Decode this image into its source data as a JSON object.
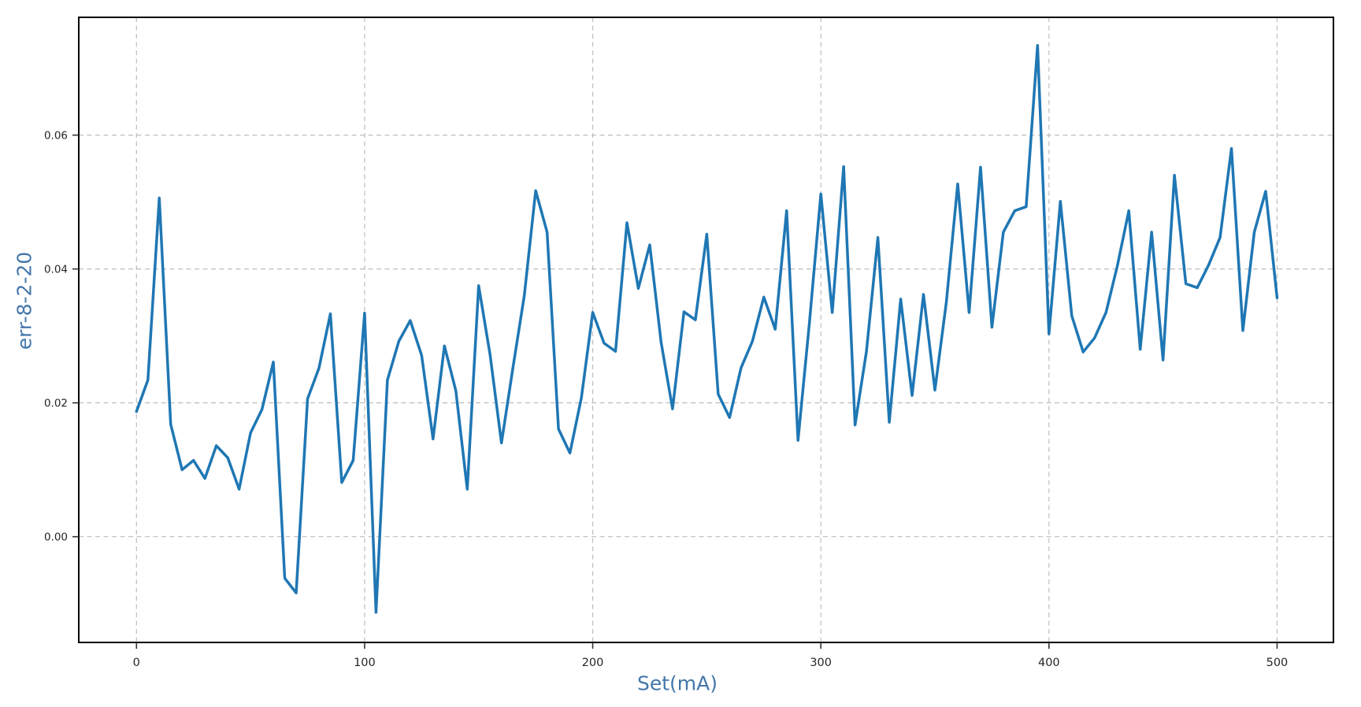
{
  "chart_data": {
    "type": "line",
    "title": "",
    "xlabel": "Set(mA)",
    "ylabel": "err-8-2-20",
    "series_name": "err-8-2-20",
    "x": [
      0,
      5,
      10,
      15,
      20,
      25,
      30,
      35,
      40,
      45,
      50,
      55,
      60,
      65,
      70,
      75,
      80,
      85,
      90,
      95,
      100,
      105,
      110,
      115,
      120,
      125,
      130,
      135,
      140,
      145,
      150,
      155,
      160,
      165,
      170,
      175,
      180,
      185,
      190,
      195,
      200,
      205,
      210,
      215,
      220,
      225,
      230,
      235,
      240,
      245,
      250,
      255,
      260,
      265,
      270,
      275,
      280,
      285,
      290,
      295,
      300,
      305,
      310,
      315,
      320,
      325,
      330,
      335,
      340,
      345,
      350,
      355,
      360,
      365,
      370,
      375,
      380,
      385,
      390,
      395,
      400,
      405,
      410,
      415,
      420,
      425,
      430,
      435,
      440,
      445,
      450,
      455,
      460,
      465,
      470,
      475,
      480,
      485,
      490,
      495,
      500
    ],
    "y": [
      0.0187,
      0.0234,
      0.0506,
      0.0168,
      0.01,
      0.0114,
      0.0087,
      0.0136,
      0.0118,
      0.0071,
      0.0155,
      0.019,
      0.0261,
      -0.0062,
      -0.0084,
      0.0206,
      0.0252,
      0.0333,
      0.0081,
      0.0114,
      0.0334,
      -0.0113,
      0.0234,
      0.0292,
      0.0323,
      0.0271,
      0.0146,
      0.0285,
      0.0218,
      0.0071,
      0.0375,
      0.0272,
      0.014,
      0.0252,
      0.036,
      0.0517,
      0.0455,
      0.0161,
      0.0125,
      0.0207,
      0.0335,
      0.0289,
      0.0277,
      0.0469,
      0.0371,
      0.0436,
      0.029,
      0.0191,
      0.0336,
      0.0324,
      0.0452,
      0.0213,
      0.0178,
      0.0252,
      0.0292,
      0.0358,
      0.031,
      0.0487,
      0.0144,
      0.032,
      0.0512,
      0.0335,
      0.0553,
      0.0167,
      0.0277,
      0.0447,
      0.0171,
      0.0355,
      0.0211,
      0.0362,
      0.0219,
      0.035,
      0.0527,
      0.0335,
      0.0552,
      0.0313,
      0.0455,
      0.0487,
      0.0493,
      0.0734,
      0.0303,
      0.0501,
      0.033,
      0.0276,
      0.0297,
      0.0335,
      0.0405,
      0.0487,
      0.028,
      0.0455,
      0.0264,
      0.054,
      0.0378,
      0.0372,
      0.0406,
      0.0447,
      0.058,
      0.0308,
      0.0455,
      0.0516,
      0.0357
    ],
    "xlim": [
      -25.3,
      524.7
    ],
    "ylim": [
      -0.0158,
      0.0776
    ],
    "xticks": [
      0,
      100,
      200,
      300,
      400,
      500
    ],
    "xtick_labels": [
      "0",
      "100",
      "200",
      "300",
      "400",
      "500"
    ],
    "yticks": [
      0.0,
      0.02,
      0.04,
      0.06
    ],
    "ytick_labels": [
      "0.00",
      "0.02",
      "0.04",
      "0.06"
    ],
    "grid": {
      "visible": true,
      "style": "dashed",
      "color": "#bdbdbd"
    },
    "legend": {
      "visible": false
    },
    "line_color": "#1f77b4",
    "line_width": 3.5,
    "marker": "none",
    "axis_label_color": "#4477aa",
    "tick_label_color": "#262626",
    "spine_color": "#000000",
    "background_color": "#ffffff"
  }
}
